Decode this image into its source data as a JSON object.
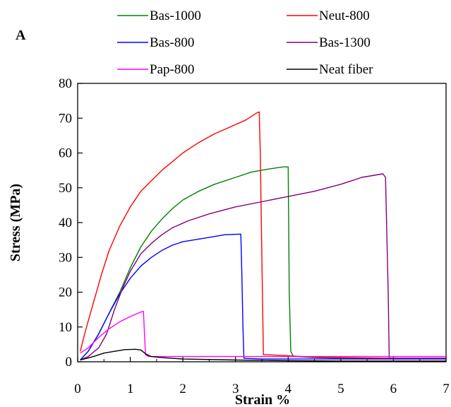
{
  "chart_data": {
    "type": "line",
    "panel_label": "A",
    "xlabel": "Strain %",
    "ylabel": "Stress (MPa)",
    "xlim": [
      0,
      7
    ],
    "ylim": [
      0,
      80
    ],
    "xticks": [
      "0",
      "1",
      "2",
      "3",
      "4",
      "5",
      "6",
      "7"
    ],
    "yticks": [
      "0",
      "10",
      "20",
      "30",
      "40",
      "50",
      "60",
      "70",
      "80"
    ],
    "grid": false,
    "legend_position": "top",
    "series": [
      {
        "name": "Bas-1000",
        "color": "#008000",
        "points": [
          [
            0.05,
            0.5
          ],
          [
            0.2,
            3
          ],
          [
            0.4,
            8
          ],
          [
            0.6,
            14
          ],
          [
            0.8,
            20
          ],
          [
            1.0,
            27
          ],
          [
            1.2,
            33
          ],
          [
            1.4,
            37.5
          ],
          [
            1.6,
            41
          ],
          [
            1.8,
            44
          ],
          [
            2.0,
            46.5
          ],
          [
            2.3,
            49
          ],
          [
            2.6,
            51
          ],
          [
            3.0,
            53
          ],
          [
            3.3,
            54.5
          ],
          [
            3.6,
            55.3
          ],
          [
            3.9,
            56
          ],
          [
            4.0,
            56
          ],
          [
            4.01,
            40
          ],
          [
            4.02,
            20
          ],
          [
            4.05,
            3
          ],
          [
            4.1,
            1.5
          ],
          [
            4.5,
            1.2
          ],
          [
            5.0,
            1.0
          ],
          [
            7.0,
            1.0
          ]
        ]
      },
      {
        "name": "Neut-800",
        "color": "#ff0000",
        "points": [
          [
            0.05,
            3
          ],
          [
            0.15,
            9
          ],
          [
            0.3,
            17
          ],
          [
            0.45,
            25
          ],
          [
            0.6,
            32
          ],
          [
            0.8,
            39
          ],
          [
            1.0,
            44.5
          ],
          [
            1.2,
            49
          ],
          [
            1.4,
            52
          ],
          [
            1.6,
            55
          ],
          [
            1.8,
            57.5
          ],
          [
            2.0,
            60
          ],
          [
            2.3,
            63
          ],
          [
            2.6,
            65.5
          ],
          [
            2.9,
            67.5
          ],
          [
            3.2,
            69.5
          ],
          [
            3.4,
            71.5
          ],
          [
            3.45,
            71.8
          ],
          [
            3.47,
            60
          ],
          [
            3.5,
            30
          ],
          [
            3.53,
            2
          ],
          [
            3.6,
            2
          ],
          [
            3.9,
            1.8
          ],
          [
            4.5,
            1.3
          ],
          [
            5.0,
            1.2
          ],
          [
            6.0,
            1.0
          ],
          [
            7.0,
            1.0
          ]
        ]
      },
      {
        "name": "Bas-800",
        "color": "#0000ff",
        "points": [
          [
            0.05,
            0.5
          ],
          [
            0.2,
            3
          ],
          [
            0.4,
            8
          ],
          [
            0.6,
            14
          ],
          [
            0.8,
            19.5
          ],
          [
            1.0,
            24
          ],
          [
            1.2,
            27.5
          ],
          [
            1.4,
            30
          ],
          [
            1.6,
            32
          ],
          [
            1.8,
            33.5
          ],
          [
            2.0,
            34.5
          ],
          [
            2.4,
            35.5
          ],
          [
            2.8,
            36.5
          ],
          [
            3.1,
            36.7
          ],
          [
            3.12,
            25
          ],
          [
            3.14,
            10
          ],
          [
            3.16,
            1.0
          ],
          [
            3.5,
            0.8
          ],
          [
            5.0,
            0.8
          ],
          [
            7.0,
            0.8
          ]
        ]
      },
      {
        "name": "Bas-1300",
        "color": "#800080",
        "points": [
          [
            0.05,
            0.5
          ],
          [
            0.2,
            1.5
          ],
          [
            0.4,
            4
          ],
          [
            0.55,
            8
          ],
          [
            0.7,
            15
          ],
          [
            0.85,
            21
          ],
          [
            1.0,
            26
          ],
          [
            1.2,
            31
          ],
          [
            1.4,
            34
          ],
          [
            1.6,
            36.5
          ],
          [
            1.8,
            38.5
          ],
          [
            2.1,
            40.5
          ],
          [
            2.5,
            42.5
          ],
          [
            3.0,
            44.5
          ],
          [
            3.5,
            46
          ],
          [
            4.0,
            47.5
          ],
          [
            4.5,
            49
          ],
          [
            5.0,
            51
          ],
          [
            5.4,
            53
          ],
          [
            5.8,
            54
          ],
          [
            5.85,
            53
          ],
          [
            5.87,
            40
          ],
          [
            5.9,
            20
          ],
          [
            5.92,
            1.0
          ],
          [
            6.2,
            1.0
          ],
          [
            7.0,
            1.0
          ]
        ]
      },
      {
        "name": "Pap-800",
        "color": "#ff00ff",
        "points": [
          [
            0.05,
            2.5
          ],
          [
            0.2,
            4
          ],
          [
            0.4,
            7
          ],
          [
            0.6,
            9.5
          ],
          [
            0.8,
            11.5
          ],
          [
            1.0,
            13
          ],
          [
            1.2,
            14.3
          ],
          [
            1.25,
            14.5
          ],
          [
            1.27,
            8
          ],
          [
            1.29,
            2
          ],
          [
            1.35,
            1.5
          ],
          [
            2.0,
            1.5
          ],
          [
            4.0,
            1.5
          ],
          [
            7.0,
            1.5
          ]
        ]
      },
      {
        "name": "Neat fiber",
        "color": "#000000",
        "points": [
          [
            0.05,
            0.5
          ],
          [
            0.3,
            1.5
          ],
          [
            0.5,
            2.5
          ],
          [
            0.7,
            3
          ],
          [
            0.9,
            3.5
          ],
          [
            1.1,
            3.6
          ],
          [
            1.2,
            3.4
          ],
          [
            1.3,
            2.2
          ],
          [
            1.4,
            1.5
          ],
          [
            1.6,
            1.2
          ],
          [
            2.0,
            0.8
          ],
          [
            3.0,
            0.5
          ],
          [
            4.0,
            0.3
          ],
          [
            5.0,
            0.2
          ],
          [
            7.0,
            0.2
          ]
        ]
      }
    ]
  }
}
